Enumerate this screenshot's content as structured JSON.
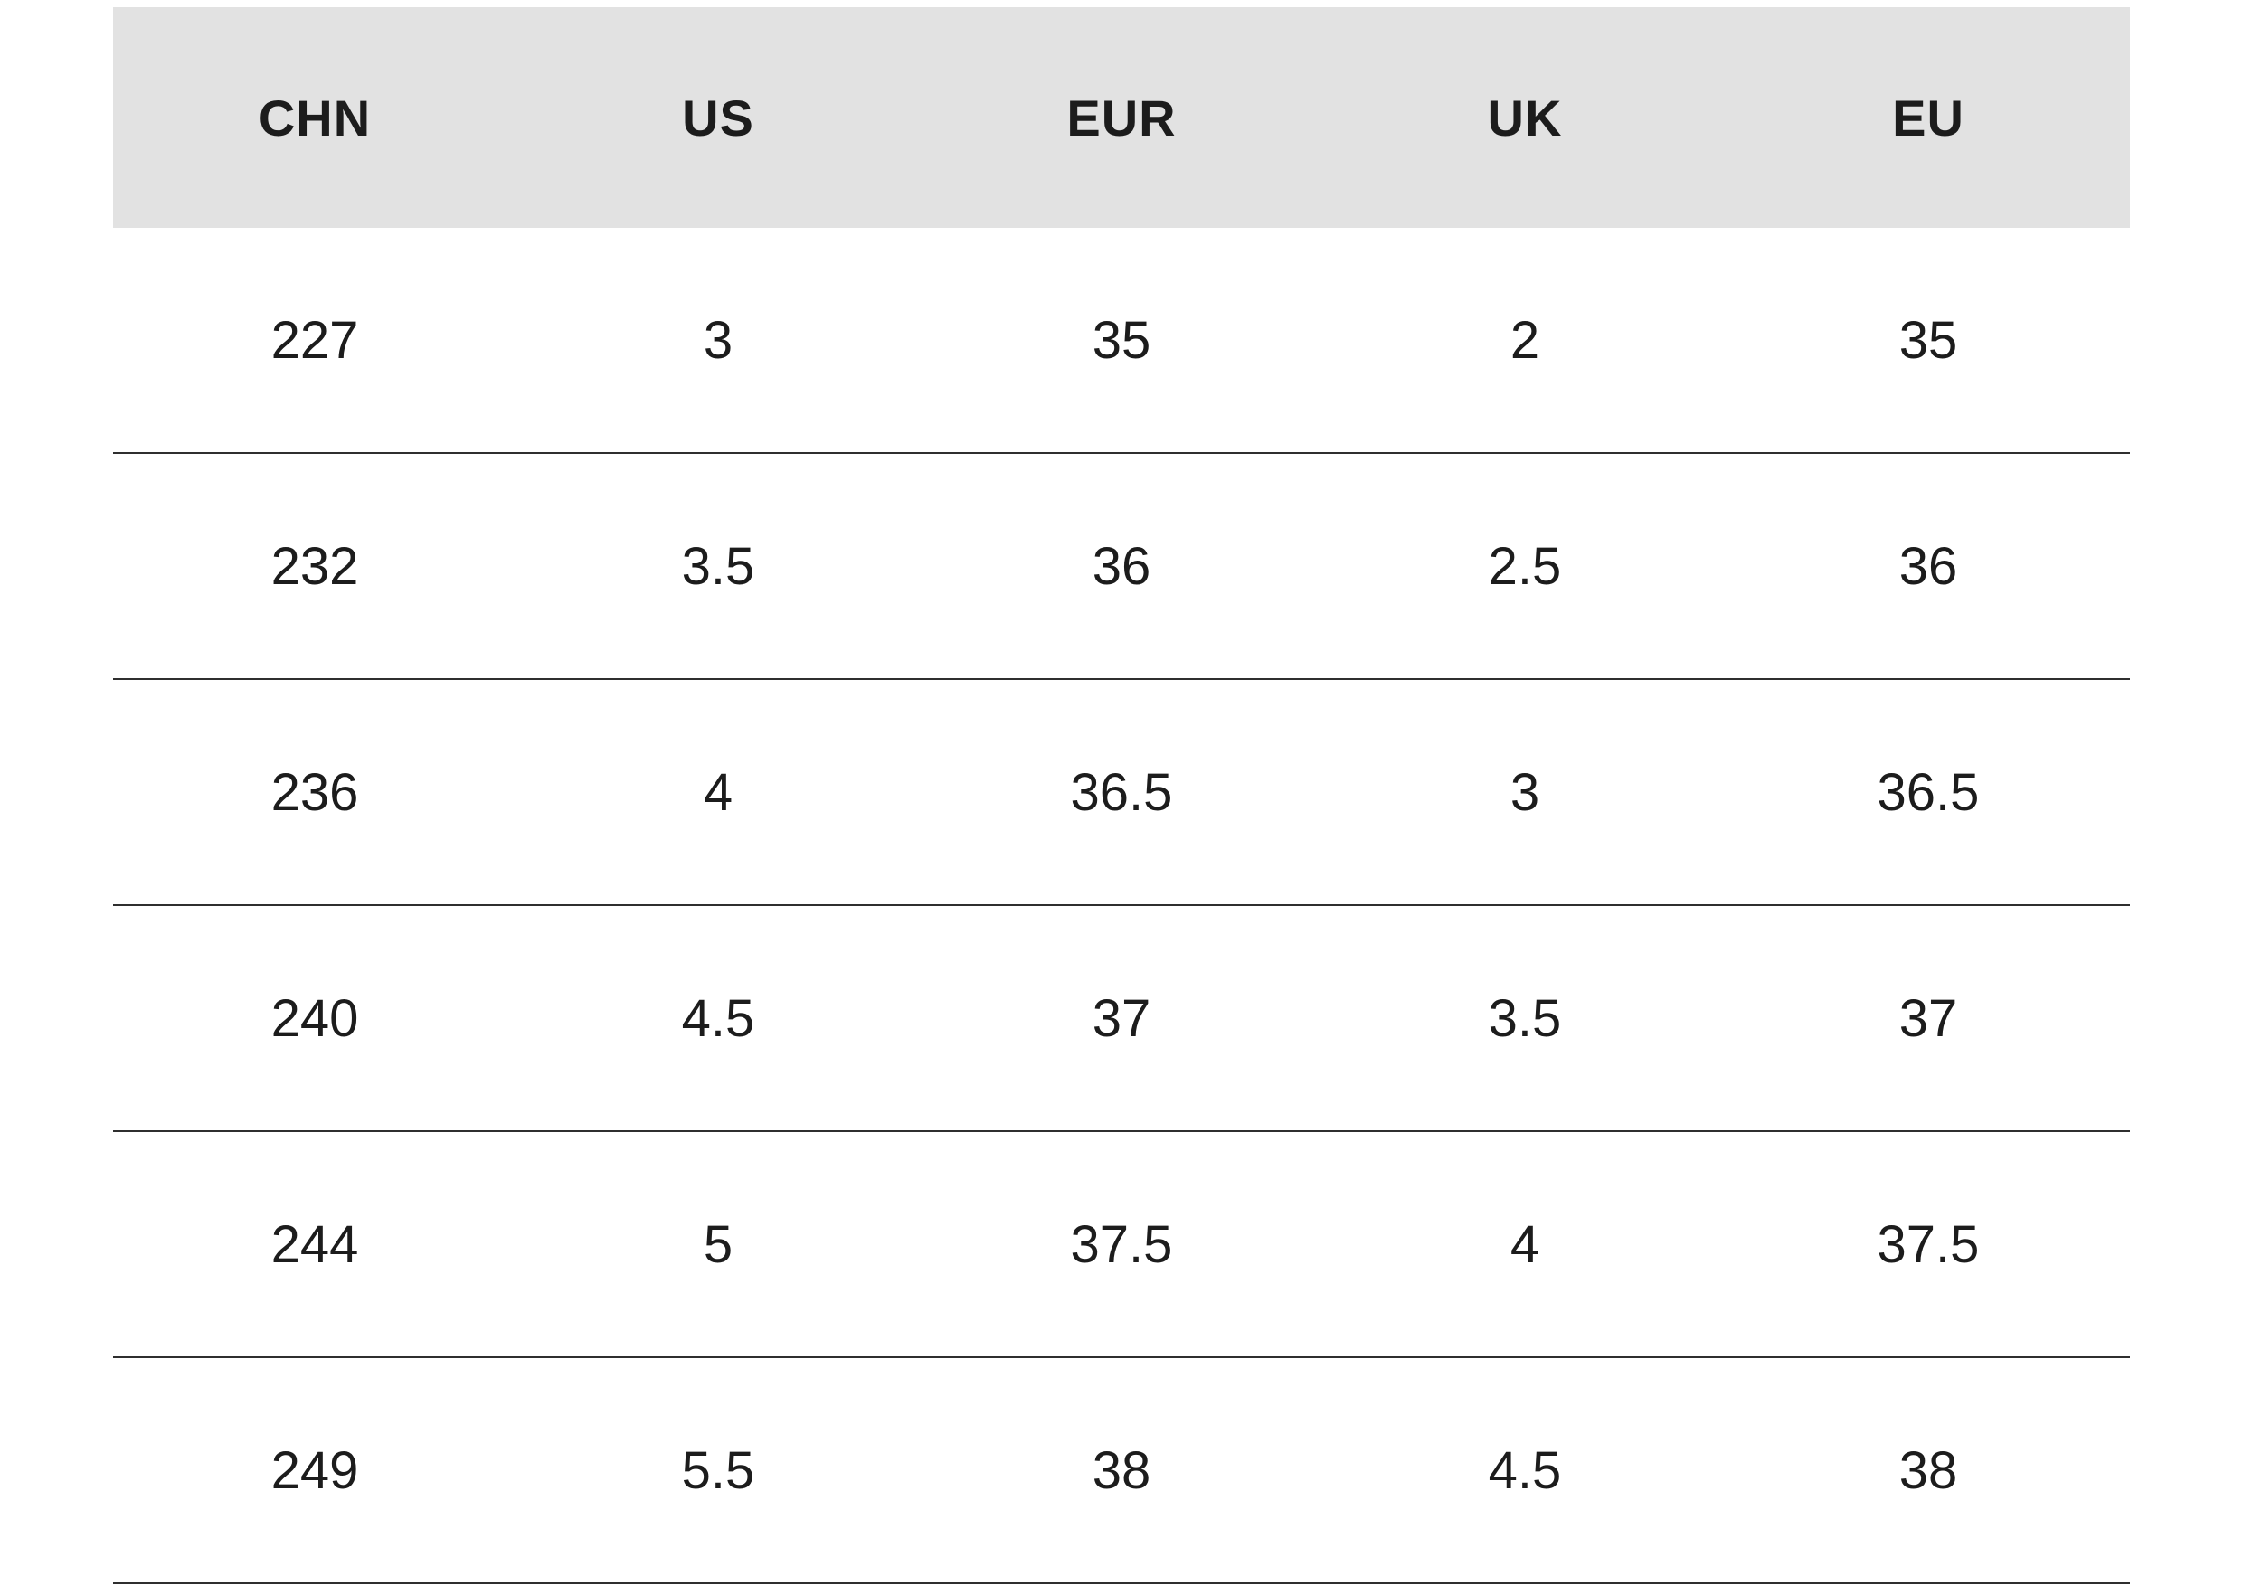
{
  "chart_data": {
    "type": "table",
    "columns": [
      "CHN",
      "US",
      "EUR",
      "UK",
      "EU"
    ],
    "rows": [
      [
        227,
        3,
        35,
        2,
        35
      ],
      [
        232,
        3.5,
        36,
        2.5,
        36
      ],
      [
        236,
        4,
        36.5,
        3,
        36.5
      ],
      [
        240,
        4.5,
        37,
        3.5,
        37
      ],
      [
        244,
        5,
        37.5,
        4,
        37.5
      ],
      [
        249,
        5.5,
        38,
        4.5,
        38
      ]
    ],
    "layout": {
      "grid": "horizontal-row-dividers-only",
      "header_style": "gray-band"
    }
  },
  "style": {
    "page_background": "#ffffff",
    "header_background": "#e2e2e2",
    "text_color": "#1c1c1c",
    "row_divider_color": "#2f2f2f"
  }
}
